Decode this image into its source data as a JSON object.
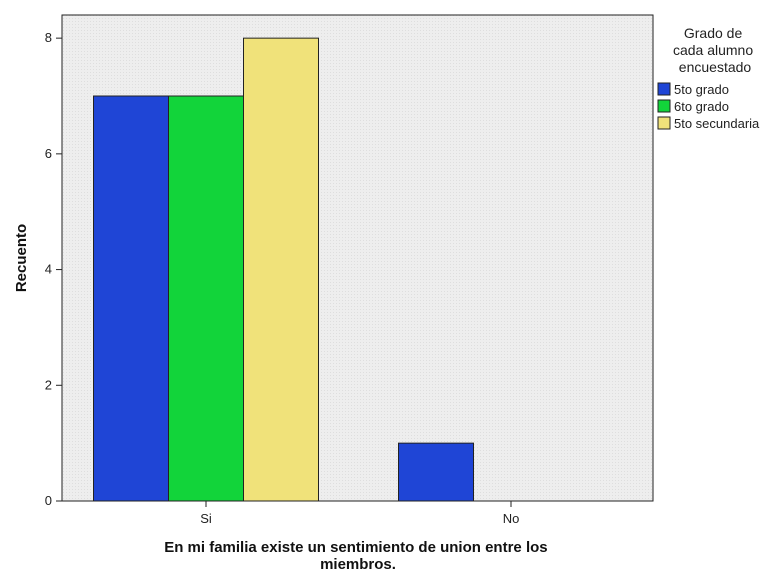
{
  "chart_data": {
    "type": "bar",
    "categories": [
      "Si",
      "No"
    ],
    "series": [
      {
        "name": "5to grado",
        "values": [
          7,
          1
        ],
        "color": "#1f45d6"
      },
      {
        "name": "6to grado",
        "values": [
          7,
          0
        ],
        "color": "#12d43a"
      },
      {
        "name": "5to secundaria",
        "values": [
          8,
          0
        ],
        "color": "#f0e27a"
      }
    ],
    "xlabel": "En mi familia existe un sentimiento de union entre los miembros.",
    "xlabel_lines": [
      "En mi familia existe un sentimiento de union entre los",
      "miembros."
    ],
    "ylabel": "Recuento",
    "ylim": [
      0,
      8.4
    ],
    "yticks": [
      0,
      2,
      4,
      6,
      8
    ],
    "legend": {
      "title_lines": [
        "Grado de",
        "cada alumno",
        "encuestado"
      ],
      "placement": "right"
    },
    "plot_background": "#ededed",
    "grid": false
  }
}
